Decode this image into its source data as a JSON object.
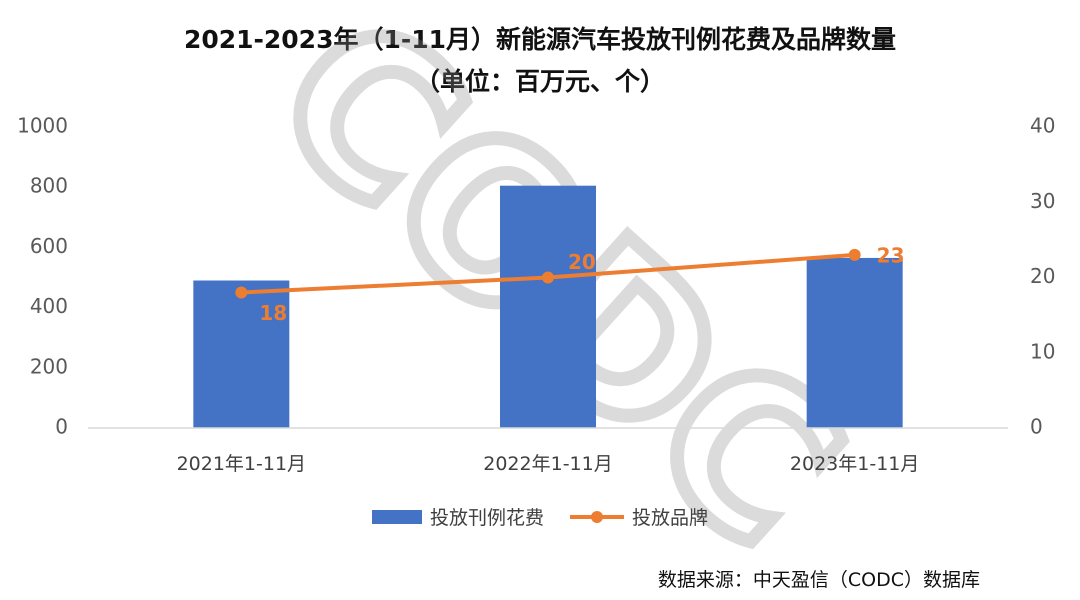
{
  "chart_data": {
    "type": "bar",
    "title": "2021-2023年（1-11月）新能源汽车投放刊例花费及品牌数量",
    "subtitle": "（单位：百万元、个）",
    "categories": [
      "2021年1-11月",
      "2022年1-11月",
      "2023年1-11月"
    ],
    "series": [
      {
        "name": "投放刊例花费",
        "type": "bar",
        "axis": "left",
        "color": "#4472C4",
        "values": [
          490,
          805,
          565
        ]
      },
      {
        "name": "投放品牌",
        "type": "line",
        "axis": "right",
        "color": "#ED7D31",
        "values": [
          18,
          20,
          23
        ],
        "labels": [
          "18",
          "20",
          "23"
        ]
      }
    ],
    "yleft": {
      "lim": [
        0,
        1000
      ],
      "ticks": [
        "0",
        "200",
        "400",
        "600",
        "800",
        "1000"
      ]
    },
    "yright": {
      "lim": [
        0,
        40
      ],
      "ticks": [
        "0",
        "10",
        "20",
        "30",
        "40"
      ]
    },
    "grid": false,
    "legend": "bottom",
    "watermark": "CODC",
    "source": "数据来源：中天盈信（CODC）数据库"
  }
}
